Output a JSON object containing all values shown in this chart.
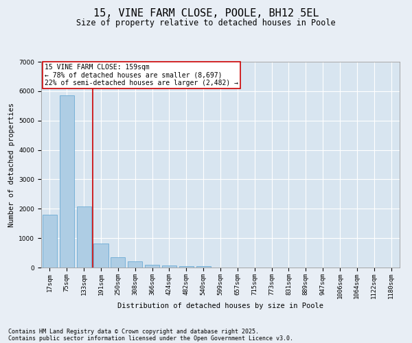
{
  "title1": "15, VINE FARM CLOSE, POOLE, BH12 5EL",
  "title2": "Size of property relative to detached houses in Poole",
  "xlabel": "Distribution of detached houses by size in Poole",
  "ylabel": "Number of detached properties",
  "categories": [
    "17sqm",
    "75sqm",
    "133sqm",
    "191sqm",
    "250sqm",
    "308sqm",
    "366sqm",
    "424sqm",
    "482sqm",
    "540sqm",
    "599sqm",
    "657sqm",
    "715sqm",
    "773sqm",
    "831sqm",
    "889sqm",
    "947sqm",
    "1006sqm",
    "1064sqm",
    "1122sqm",
    "1180sqm"
  ],
  "values": [
    1800,
    5850,
    2080,
    820,
    360,
    210,
    100,
    70,
    55,
    40,
    0,
    0,
    0,
    0,
    0,
    0,
    0,
    0,
    0,
    0,
    0
  ],
  "bar_color": "#aecde4",
  "bar_edge_color": "#6aaad4",
  "vline_color": "#cc0000",
  "annotation_box_text": "15 VINE FARM CLOSE: 159sqm\n← 78% of detached houses are smaller (8,697)\n22% of semi-detached houses are larger (2,482) →",
  "annotation_box_color": "#cc0000",
  "annotation_box_bg": "#ffffff",
  "bg_color": "#e8eef5",
  "plot_bg_color": "#d8e5f0",
  "grid_color": "#ffffff",
  "ylim": [
    0,
    7000
  ],
  "yticks": [
    0,
    1000,
    2000,
    3000,
    4000,
    5000,
    6000,
    7000
  ],
  "footer1": "Contains HM Land Registry data © Crown copyright and database right 2025.",
  "footer2": "Contains public sector information licensed under the Open Government Licence v3.0.",
  "title_fontsize": 11,
  "subtitle_fontsize": 8.5,
  "axis_label_fontsize": 7.5,
  "tick_fontsize": 6.5,
  "annotation_fontsize": 7,
  "footer_fontsize": 6
}
